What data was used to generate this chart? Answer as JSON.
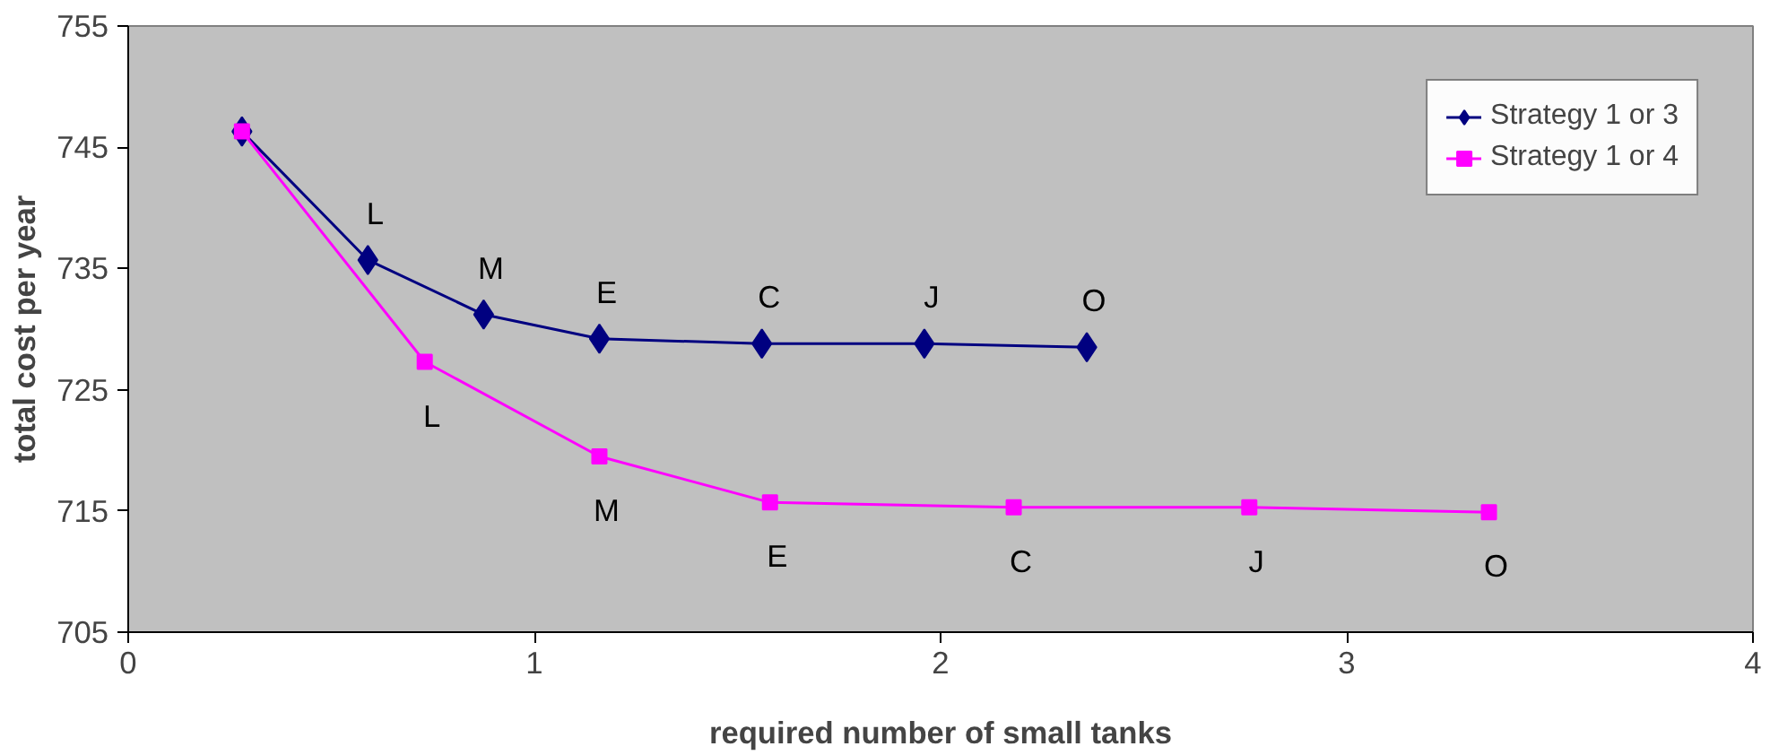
{
  "chart_data": {
    "type": "line",
    "xlabel": "required number of small tanks",
    "ylabel": "total cost per year",
    "xlim": [
      0,
      4
    ],
    "xticks": [
      0,
      1,
      2,
      3,
      4
    ],
    "ylim": [
      705,
      755
    ],
    "yticks": [
      705,
      715,
      725,
      735,
      745,
      755
    ],
    "grid": false,
    "legend": "top right",
    "series": [
      {
        "name": "Strategy 1 or 3",
        "color": "#000080",
        "marker": "diamond",
        "x": [
          0.28,
          0.59,
          0.875,
          1.16,
          1.56,
          1.96,
          2.36
        ],
        "values": [
          746.3,
          735.7,
          731.2,
          729.2,
          728.8,
          728.8,
          728.5
        ]
      },
      {
        "name": "Strategy 1 or 4",
        "color": "#ff00ff",
        "marker": "square",
        "x": [
          0.28,
          0.73,
          1.16,
          1.58,
          2.18,
          2.76,
          3.35
        ],
        "values": [
          746.3,
          727.3,
          719.5,
          715.7,
          715.3,
          715.3,
          714.9
        ]
      }
    ],
    "annotations": [
      {
        "text": "L",
        "x": 0.59,
        "y": 735.7
      },
      {
        "text": "M",
        "x": 0.875,
        "y": 731.2
      },
      {
        "text": "E",
        "x": 1.16,
        "y": 729.2
      },
      {
        "text": "C",
        "x": 1.56,
        "y": 728.8
      },
      {
        "text": "J",
        "x": 1.96,
        "y": 728.8
      },
      {
        "text": "O",
        "x": 2.36,
        "y": 728.5
      },
      {
        "text": "L",
        "x": 0.73,
        "y": 727.3
      },
      {
        "text": "M",
        "x": 1.16,
        "y": 719.5
      },
      {
        "text": "E",
        "x": 1.58,
        "y": 715.7
      },
      {
        "text": "C",
        "x": 2.18,
        "y": 715.3
      },
      {
        "text": "J",
        "x": 2.76,
        "y": 715.3
      },
      {
        "text": "O",
        "x": 3.35,
        "y": 714.9
      }
    ]
  }
}
